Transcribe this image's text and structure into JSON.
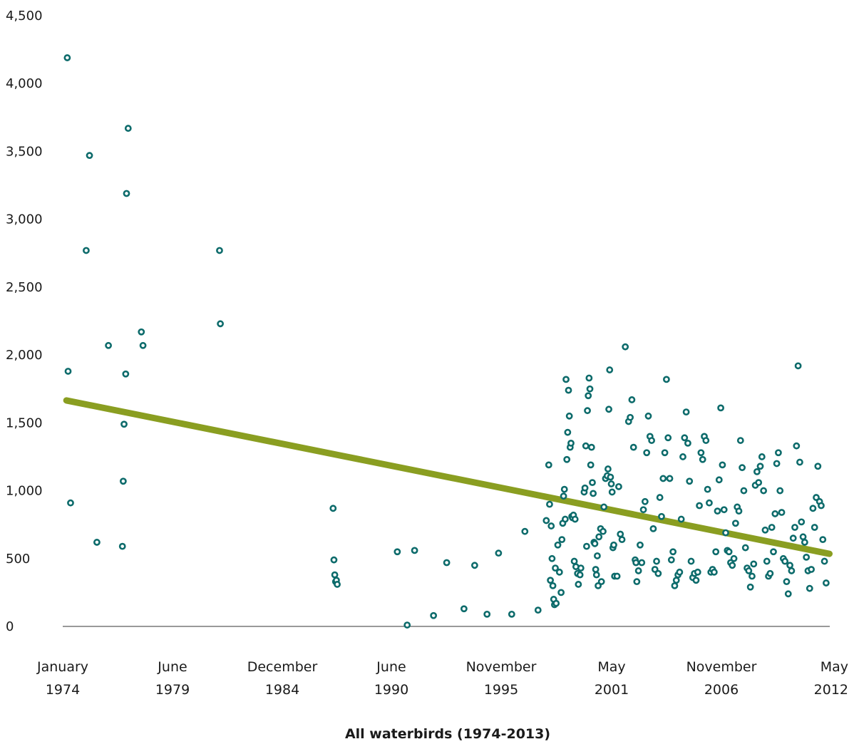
{
  "chart_data": {
    "type": "scatter",
    "title": "",
    "xlabel": "All waterbirds (1974-2013)",
    "ylabel": "",
    "ylim": [
      0,
      4500
    ],
    "xlim": [
      "1974-01",
      "2012-05"
    ],
    "grid": false,
    "legend": "none",
    "y_ticks": [
      {
        "value": 0,
        "label": "0"
      },
      {
        "value": 500,
        "label": "500"
      },
      {
        "value": 1000,
        "label": "1,000"
      },
      {
        "value": 1500,
        "label": "1,500"
      },
      {
        "value": 2000,
        "label": "2,000"
      },
      {
        "value": 2500,
        "label": "2,500"
      },
      {
        "value": 3000,
        "label": "3,000"
      },
      {
        "value": 3500,
        "label": "3,500"
      },
      {
        "value": 4000,
        "label": "4,000"
      },
      {
        "value": 4500,
        "label": "4,500"
      }
    ],
    "x_ticks": [
      {
        "value": "1974-01",
        "lines": [
          "January",
          "1974"
        ]
      },
      {
        "value": "1979-06",
        "lines": [
          "June",
          "1979"
        ]
      },
      {
        "value": "1984-12",
        "lines": [
          "December",
          "1984"
        ]
      },
      {
        "value": "1990-06",
        "lines": [
          "June",
          "1990"
        ]
      },
      {
        "value": "1995-11",
        "lines": [
          "November",
          "1995"
        ]
      },
      {
        "value": "2001-05",
        "lines": [
          "May",
          "2001"
        ]
      },
      {
        "value": "2006-11",
        "lines": [
          "November",
          "2006"
        ]
      },
      {
        "value": "2012-05",
        "lines": [
          "May",
          "2012"
        ]
      }
    ],
    "series": [
      {
        "kind": "points",
        "color": "#0d6b6b",
        "points": [
          [
            1974.2,
            4190
          ],
          [
            1974.3,
            1880
          ],
          [
            1974.6,
            910
          ],
          [
            1976.5,
            2770
          ],
          [
            1976.9,
            3470
          ],
          [
            1977.8,
            620
          ],
          [
            1979.2,
            2070
          ],
          [
            1980.9,
            590
          ],
          [
            1981.0,
            1070
          ],
          [
            1981.1,
            1490
          ],
          [
            1981.3,
            1860
          ],
          [
            1981.4,
            3190
          ],
          [
            1981.6,
            3670
          ],
          [
            1983.2,
            2170
          ],
          [
            1983.4,
            2070
          ],
          [
            1992.7,
            2770
          ],
          [
            1992.8,
            2230
          ],
          [
            2006.5,
            870
          ],
          [
            2006.6,
            490
          ],
          [
            2006.7,
            380
          ],
          [
            2006.8,
            330
          ],
          [
            2006.9,
            340
          ],
          [
            2007.0,
            310
          ],
          [
            2014.3,
            550
          ],
          [
            2015.5,
            10
          ],
          [
            2016.4,
            560
          ],
          [
            2018.7,
            80
          ],
          [
            2020.3,
            470
          ],
          [
            2022.4,
            130
          ],
          [
            2023.7,
            450
          ],
          [
            2025.2,
            90
          ],
          [
            2026.6,
            540
          ],
          [
            2028.2,
            90
          ],
          [
            2029.8,
            700
          ],
          [
            2031.4,
            120
          ],
          [
            2032.4,
            780
          ],
          [
            2032.7,
            1190
          ],
          [
            2032.8,
            900
          ],
          [
            2032.9,
            340
          ],
          [
            2033.0,
            740
          ],
          [
            2033.1,
            500
          ],
          [
            2033.2,
            300
          ],
          [
            2033.3,
            200
          ],
          [
            2033.4,
            160
          ],
          [
            2033.5,
            430
          ],
          [
            2033.6,
            170
          ],
          [
            2033.8,
            600
          ],
          [
            2034.0,
            400
          ],
          [
            2034.2,
            250
          ],
          [
            2034.3,
            640
          ],
          [
            2034.4,
            760
          ],
          [
            2034.5,
            960
          ],
          [
            2034.6,
            1010
          ],
          [
            2034.7,
            790
          ],
          [
            2034.8,
            1820
          ],
          [
            2034.9,
            1230
          ],
          [
            2035.0,
            1430
          ],
          [
            2035.1,
            1740
          ],
          [
            2035.2,
            1550
          ],
          [
            2035.3,
            1320
          ],
          [
            2035.4,
            1350
          ],
          [
            2035.5,
            810
          ],
          [
            2035.6,
            800
          ],
          [
            2035.7,
            820
          ],
          [
            2035.8,
            480
          ],
          [
            2035.9,
            790
          ],
          [
            2036.0,
            440
          ],
          [
            2036.2,
            390
          ],
          [
            2036.3,
            310
          ],
          [
            2036.5,
            380
          ],
          [
            2036.6,
            430
          ],
          [
            2037.0,
            990
          ],
          [
            2037.1,
            1020
          ],
          [
            2037.2,
            1330
          ],
          [
            2037.3,
            590
          ],
          [
            2037.4,
            1590
          ],
          [
            2037.5,
            1700
          ],
          [
            2037.6,
            1830
          ],
          [
            2037.7,
            1750
          ],
          [
            2037.8,
            1190
          ],
          [
            2037.9,
            1320
          ],
          [
            2038.0,
            1060
          ],
          [
            2038.1,
            980
          ],
          [
            2038.2,
            620
          ],
          [
            2038.3,
            610
          ],
          [
            2038.4,
            420
          ],
          [
            2038.5,
            380
          ],
          [
            2038.6,
            520
          ],
          [
            2038.7,
            300
          ],
          [
            2038.8,
            660
          ],
          [
            2039.0,
            720
          ],
          [
            2039.1,
            330
          ],
          [
            2039.3,
            700
          ],
          [
            2039.4,
            880
          ],
          [
            2039.6,
            1090
          ],
          [
            2039.8,
            1110
          ],
          [
            2039.9,
            1160
          ],
          [
            2040.0,
            1600
          ],
          [
            2040.1,
            1890
          ],
          [
            2040.2,
            1100
          ],
          [
            2040.3,
            1050
          ],
          [
            2040.4,
            990
          ],
          [
            2040.5,
            580
          ],
          [
            2040.6,
            600
          ],
          [
            2040.7,
            370
          ],
          [
            2041.0,
            370
          ],
          [
            2041.2,
            1030
          ],
          [
            2041.4,
            680
          ],
          [
            2041.6,
            640
          ],
          [
            2042.0,
            2060
          ],
          [
            2042.4,
            1510
          ],
          [
            2042.6,
            1540
          ],
          [
            2042.8,
            1670
          ],
          [
            2043.0,
            1320
          ],
          [
            2043.2,
            490
          ],
          [
            2043.3,
            470
          ],
          [
            2043.4,
            330
          ],
          [
            2043.6,
            410
          ],
          [
            2043.8,
            600
          ],
          [
            2044.0,
            470
          ],
          [
            2044.2,
            860
          ],
          [
            2044.4,
            920
          ],
          [
            2044.6,
            1280
          ],
          [
            2044.8,
            1550
          ],
          [
            2045.0,
            1400
          ],
          [
            2045.2,
            1370
          ],
          [
            2045.4,
            720
          ],
          [
            2045.6,
            420
          ],
          [
            2045.8,
            480
          ],
          [
            2046.0,
            390
          ],
          [
            2046.2,
            950
          ],
          [
            2046.4,
            810
          ],
          [
            2046.6,
            1090
          ],
          [
            2046.8,
            1280
          ],
          [
            2047.0,
            1820
          ],
          [
            2047.2,
            1390
          ],
          [
            2047.4,
            1090
          ],
          [
            2047.6,
            490
          ],
          [
            2047.8,
            550
          ],
          [
            2048.0,
            300
          ],
          [
            2048.2,
            340
          ],
          [
            2048.4,
            380
          ],
          [
            2048.6,
            400
          ],
          [
            2048.8,
            790
          ],
          [
            2049.0,
            1250
          ],
          [
            2049.2,
            1390
          ],
          [
            2049.4,
            1580
          ],
          [
            2049.6,
            1350
          ],
          [
            2049.8,
            1070
          ],
          [
            2050.0,
            480
          ],
          [
            2050.2,
            360
          ],
          [
            2050.4,
            390
          ],
          [
            2050.6,
            340
          ],
          [
            2050.8,
            400
          ],
          [
            2051.0,
            890
          ],
          [
            2051.2,
            1280
          ],
          [
            2051.4,
            1230
          ],
          [
            2051.6,
            1400
          ],
          [
            2051.8,
            1370
          ],
          [
            2052.0,
            1010
          ],
          [
            2052.2,
            910
          ],
          [
            2052.4,
            400
          ],
          [
            2052.6,
            420
          ],
          [
            2052.8,
            400
          ],
          [
            2053.0,
            550
          ],
          [
            2053.2,
            850
          ],
          [
            2053.4,
            1080
          ],
          [
            2053.6,
            1610
          ],
          [
            2053.8,
            1190
          ],
          [
            2054.0,
            860
          ],
          [
            2054.2,
            690
          ],
          [
            2054.4,
            560
          ],
          [
            2054.6,
            550
          ],
          [
            2054.8,
            470
          ],
          [
            2055.0,
            450
          ],
          [
            2055.2,
            500
          ],
          [
            2055.4,
            760
          ],
          [
            2055.6,
            880
          ],
          [
            2055.8,
            850
          ],
          [
            2056.0,
            1370
          ],
          [
            2056.2,
            1170
          ],
          [
            2056.4,
            1000
          ],
          [
            2056.6,
            580
          ],
          [
            2056.8,
            430
          ],
          [
            2057.0,
            410
          ],
          [
            2057.2,
            290
          ],
          [
            2057.4,
            370
          ],
          [
            2057.6,
            460
          ],
          [
            2057.8,
            1040
          ],
          [
            2058.0,
            1140
          ],
          [
            2058.2,
            1060
          ],
          [
            2058.4,
            1180
          ],
          [
            2058.6,
            1250
          ],
          [
            2058.8,
            1000
          ],
          [
            2059.0,
            710
          ],
          [
            2059.2,
            480
          ],
          [
            2059.4,
            370
          ],
          [
            2059.6,
            390
          ],
          [
            2059.8,
            730
          ],
          [
            2060.0,
            550
          ],
          [
            2060.2,
            830
          ],
          [
            2060.4,
            1200
          ],
          [
            2060.6,
            1280
          ],
          [
            2060.8,
            1000
          ],
          [
            2061.0,
            840
          ],
          [
            2061.2,
            500
          ],
          [
            2061.4,
            480
          ],
          [
            2061.6,
            330
          ],
          [
            2061.8,
            240
          ],
          [
            2062.0,
            450
          ],
          [
            2062.2,
            410
          ],
          [
            2062.4,
            650
          ],
          [
            2062.6,
            730
          ],
          [
            2062.8,
            1330
          ],
          [
            2063.0,
            1920
          ],
          [
            2063.2,
            1210
          ],
          [
            2063.4,
            770
          ],
          [
            2063.6,
            660
          ],
          [
            2063.8,
            620
          ],
          [
            2064.0,
            510
          ],
          [
            2064.2,
            410
          ],
          [
            2064.4,
            280
          ],
          [
            2064.6,
            420
          ],
          [
            2064.8,
            870
          ],
          [
            2065.0,
            730
          ],
          [
            2065.2,
            950
          ],
          [
            2065.4,
            1180
          ],
          [
            2065.6,
            920
          ],
          [
            2065.8,
            890
          ],
          [
            2066.0,
            640
          ],
          [
            2066.2,
            480
          ],
          [
            2066.4,
            320
          ]
        ]
      },
      {
        "kind": "trendline",
        "color": "#8a9e21",
        "points": [
          [
            1974.1,
            1665
          ],
          [
            2066.8,
            535
          ]
        ]
      }
    ]
  }
}
